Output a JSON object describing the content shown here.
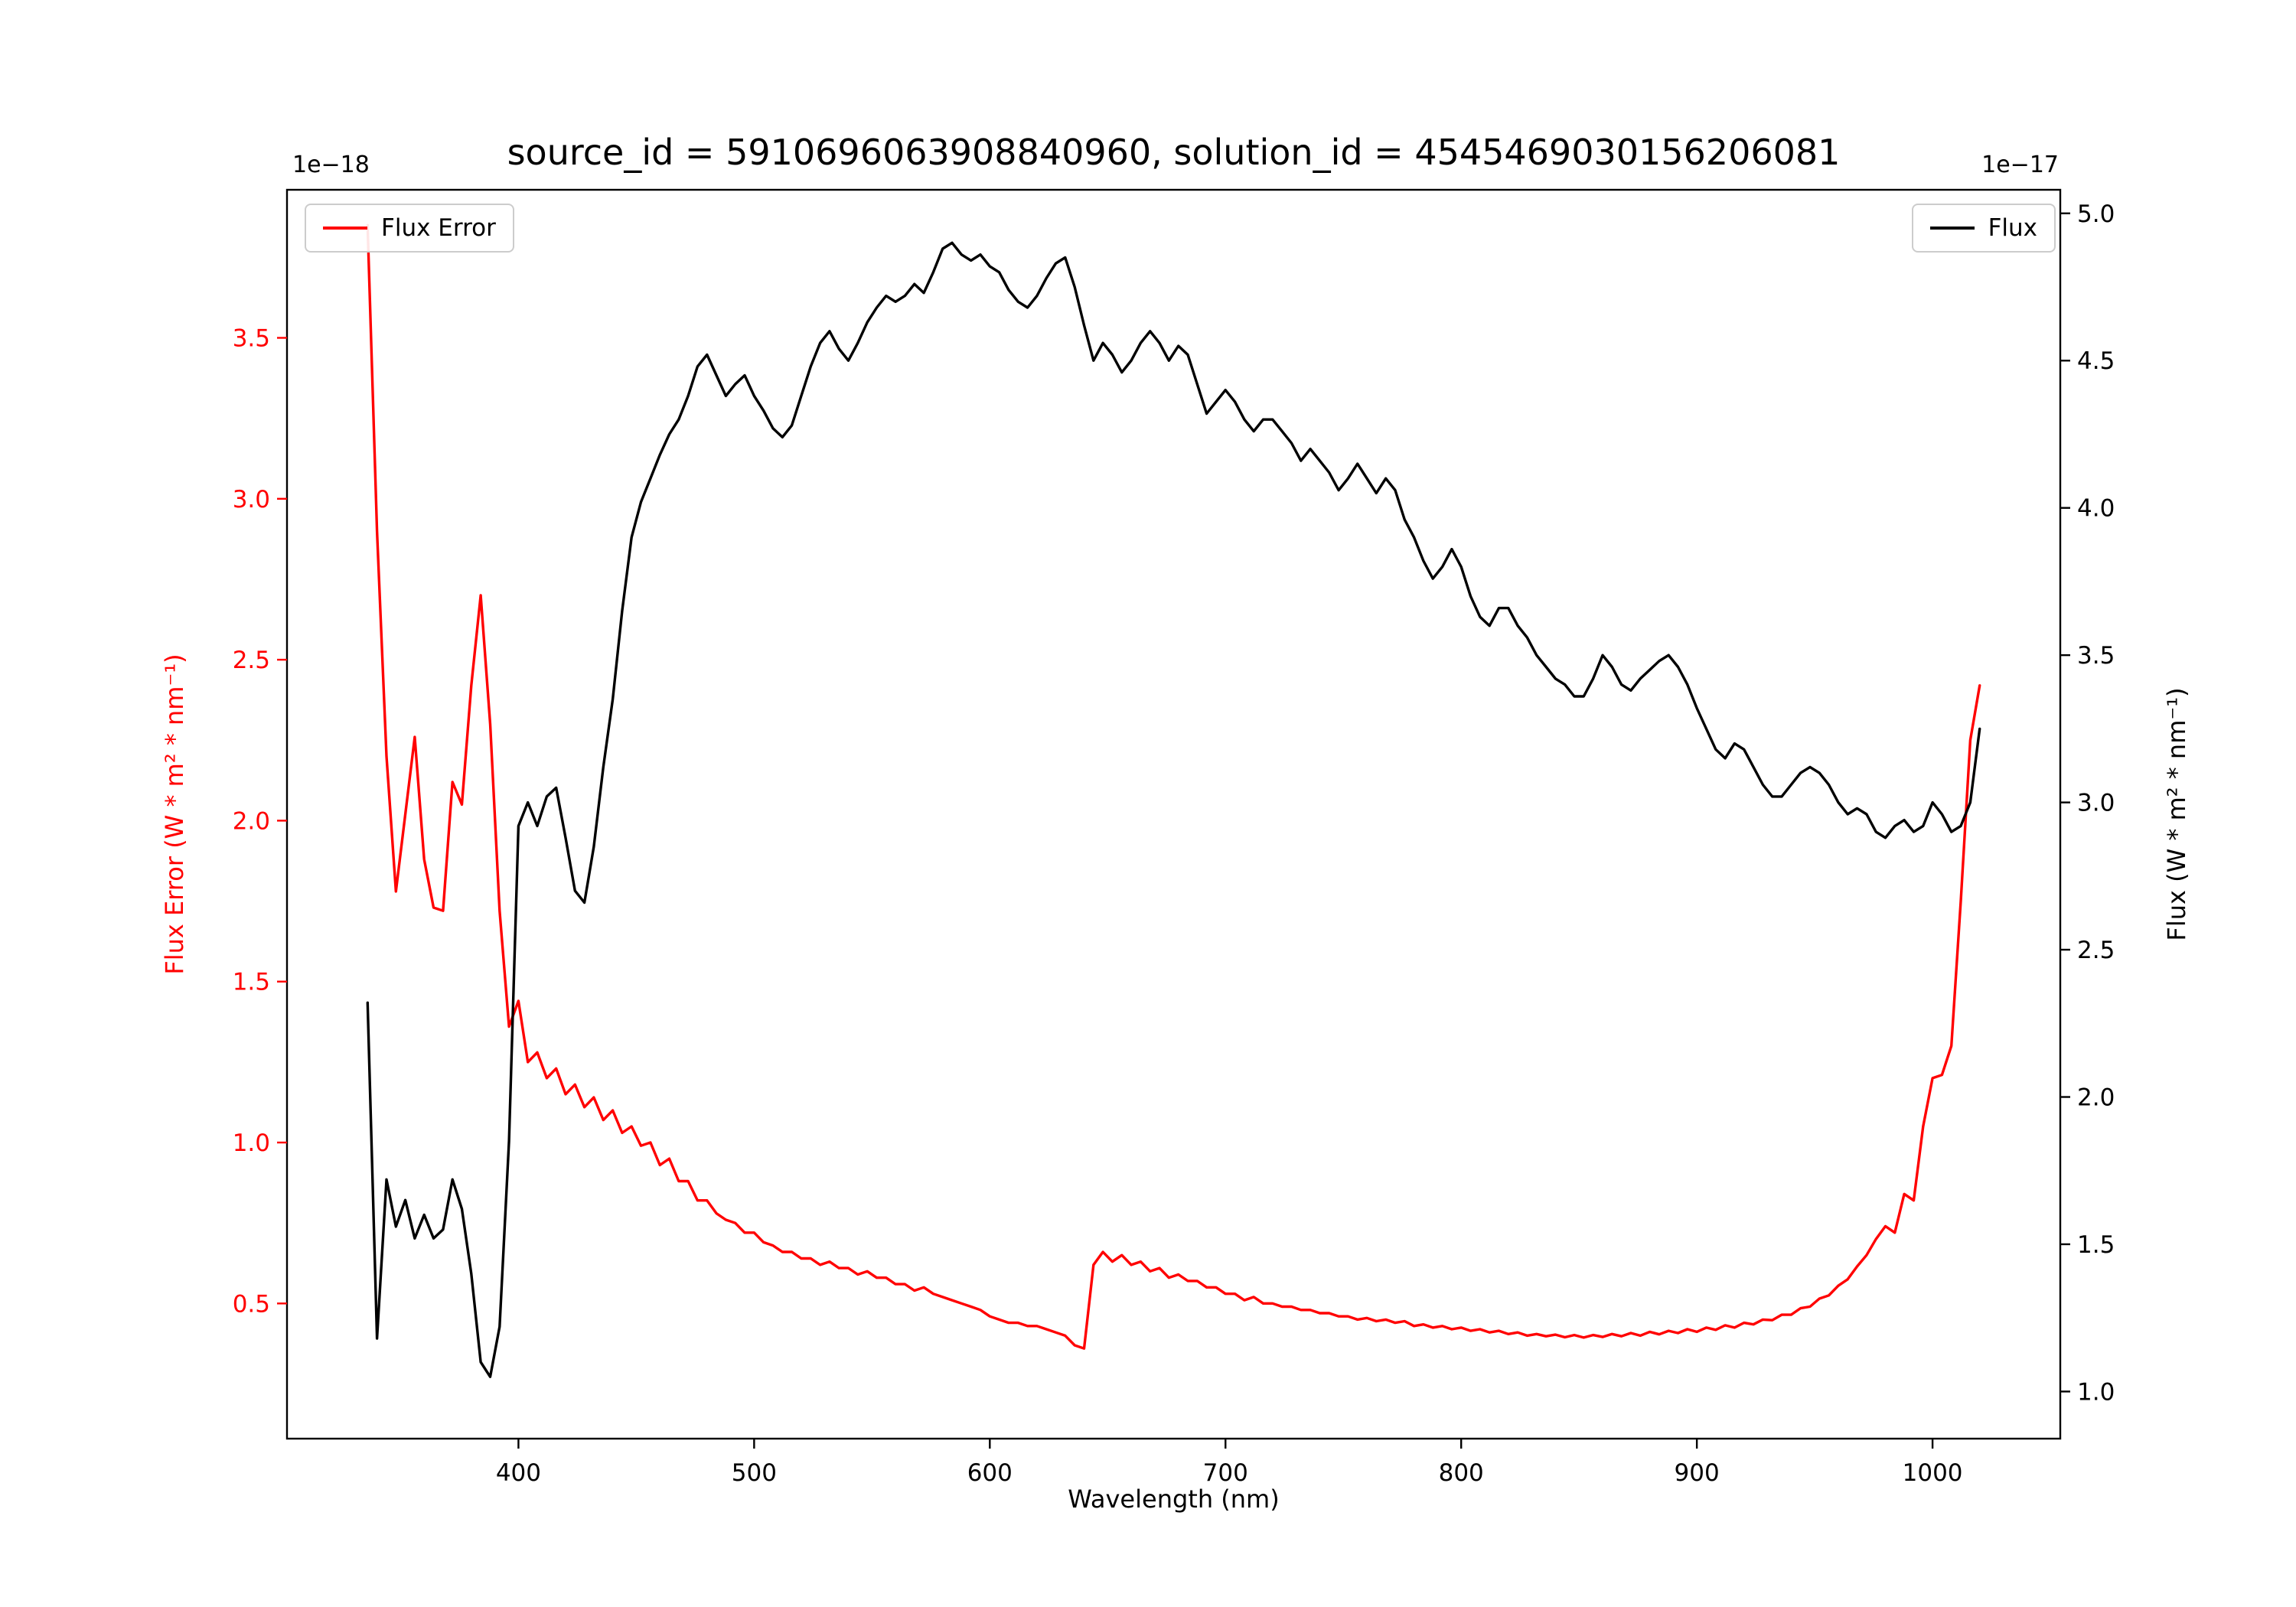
{
  "chart_data": {
    "type": "line",
    "title": "source_id = 5910696063908840960, solution_id = 4545469030156206081",
    "xlabel": "Wavelength (nm)",
    "legend": {
      "left_label": "Flux Error",
      "right_label": "Flux",
      "left_position": "upper left",
      "right_position": "upper right"
    },
    "grid": false,
    "axes": {
      "x": {
        "lim": [
          301.8,
          1054.2
        ],
        "ticks": [
          400,
          500,
          600,
          700,
          800,
          900,
          1000
        ]
      },
      "y_left": {
        "label": "Flux Error (W * m² * nm⁻¹)",
        "scale_label": "1e−18",
        "color": "#ff0000",
        "lim": [
          0.08,
          3.96
        ],
        "ticks": [
          0.5,
          1.0,
          1.5,
          2.0,
          2.5,
          3.0,
          3.5
        ]
      },
      "y_right": {
        "label": "Flux (W * m² * nm⁻¹)",
        "scale_label": "1e−17",
        "color": "#000000",
        "lim": [
          0.84,
          5.08
        ],
        "ticks": [
          1.0,
          1.5,
          2.0,
          2.5,
          3.0,
          3.5,
          4.0,
          4.5,
          5.0
        ]
      }
    },
    "x": [
      336,
      340,
      344,
      348,
      352,
      356,
      360,
      364,
      368,
      372,
      376,
      380,
      384,
      388,
      392,
      396,
      400,
      404,
      408,
      412,
      416,
      420,
      424,
      428,
      432,
      436,
      440,
      444,
      448,
      452,
      456,
      460,
      464,
      468,
      472,
      476,
      480,
      484,
      488,
      492,
      496,
      500,
      504,
      508,
      512,
      516,
      520,
      524,
      528,
      532,
      536,
      540,
      544,
      548,
      552,
      556,
      560,
      564,
      568,
      572,
      576,
      580,
      584,
      588,
      592,
      596,
      600,
      604,
      608,
      612,
      616,
      620,
      624,
      628,
      632,
      636,
      640,
      644,
      648,
      652,
      656,
      660,
      664,
      668,
      672,
      676,
      680,
      684,
      688,
      692,
      696,
      700,
      704,
      708,
      712,
      716,
      720,
      724,
      728,
      732,
      736,
      740,
      744,
      748,
      752,
      756,
      760,
      764,
      768,
      772,
      776,
      780,
      784,
      788,
      792,
      796,
      800,
      804,
      808,
      812,
      816,
      820,
      824,
      828,
      832,
      836,
      840,
      844,
      848,
      852,
      856,
      860,
      864,
      868,
      872,
      876,
      880,
      884,
      888,
      892,
      896,
      900,
      904,
      908,
      912,
      916,
      920,
      924,
      928,
      932,
      936,
      940,
      944,
      948,
      952,
      956,
      960,
      964,
      968,
      972,
      976,
      980,
      984,
      988,
      992,
      996,
      1000,
      1004,
      1008,
      1012,
      1016,
      1020
    ],
    "series": [
      {
        "name": "Flux Error",
        "axis": "left",
        "color": "#ff0000",
        "units_scale": "1e-18",
        "values": [
          3.85,
          2.9,
          2.2,
          1.78,
          2.02,
          2.26,
          1.88,
          1.73,
          1.72,
          2.12,
          2.05,
          2.42,
          2.7,
          2.3,
          1.72,
          1.36,
          1.44,
          1.25,
          1.28,
          1.2,
          1.23,
          1.15,
          1.18,
          1.11,
          1.14,
          1.07,
          1.1,
          1.03,
          1.05,
          0.99,
          1.0,
          0.93,
          0.95,
          0.88,
          0.88,
          0.82,
          0.82,
          0.78,
          0.76,
          0.75,
          0.72,
          0.72,
          0.69,
          0.68,
          0.66,
          0.66,
          0.64,
          0.64,
          0.62,
          0.63,
          0.61,
          0.61,
          0.59,
          0.6,
          0.58,
          0.58,
          0.56,
          0.56,
          0.54,
          0.55,
          0.53,
          0.52,
          0.51,
          0.5,
          0.49,
          0.48,
          0.46,
          0.45,
          0.44,
          0.44,
          0.43,
          0.43,
          0.42,
          0.41,
          0.4,
          0.37,
          0.36,
          0.62,
          0.66,
          0.63,
          0.65,
          0.62,
          0.63,
          0.6,
          0.61,
          0.58,
          0.59,
          0.57,
          0.57,
          0.55,
          0.55,
          0.53,
          0.53,
          0.51,
          0.52,
          0.5,
          0.5,
          0.49,
          0.49,
          0.48,
          0.48,
          0.47,
          0.47,
          0.46,
          0.46,
          0.45,
          0.455,
          0.445,
          0.45,
          0.44,
          0.445,
          0.43,
          0.435,
          0.425,
          0.43,
          0.42,
          0.425,
          0.415,
          0.42,
          0.41,
          0.415,
          0.405,
          0.41,
          0.4,
          0.405,
          0.398,
          0.403,
          0.395,
          0.402,
          0.394,
          0.402,
          0.396,
          0.405,
          0.398,
          0.408,
          0.4,
          0.412,
          0.404,
          0.415,
          0.408,
          0.42,
          0.412,
          0.425,
          0.418,
          0.432,
          0.425,
          0.44,
          0.435,
          0.45,
          0.448,
          0.465,
          0.465,
          0.485,
          0.49,
          0.515,
          0.525,
          0.555,
          0.575,
          0.615,
          0.65,
          0.7,
          0.74,
          0.72,
          0.84,
          0.82,
          1.05,
          1.2,
          1.21,
          1.3,
          1.75,
          2.25,
          2.42
        ]
      },
      {
        "name": "Flux",
        "axis": "right",
        "color": "#000000",
        "units_scale": "1e-17",
        "values": [
          2.32,
          1.18,
          1.72,
          1.56,
          1.65,
          1.52,
          1.6,
          1.52,
          1.55,
          1.72,
          1.62,
          1.4,
          1.1,
          1.05,
          1.22,
          1.85,
          2.92,
          3.0,
          2.92,
          3.02,
          3.05,
          2.88,
          2.7,
          2.66,
          2.85,
          3.12,
          3.35,
          3.65,
          3.9,
          4.02,
          4.1,
          4.18,
          4.25,
          4.3,
          4.38,
          4.48,
          4.52,
          4.45,
          4.38,
          4.42,
          4.45,
          4.38,
          4.33,
          4.27,
          4.24,
          4.28,
          4.38,
          4.48,
          4.56,
          4.6,
          4.54,
          4.5,
          4.56,
          4.63,
          4.68,
          4.72,
          4.7,
          4.72,
          4.76,
          4.73,
          4.8,
          4.88,
          4.9,
          4.86,
          4.84,
          4.86,
          4.82,
          4.8,
          4.74,
          4.7,
          4.68,
          4.72,
          4.78,
          4.83,
          4.85,
          4.75,
          4.62,
          4.5,
          4.56,
          4.52,
          4.46,
          4.5,
          4.56,
          4.6,
          4.56,
          4.5,
          4.55,
          4.52,
          4.42,
          4.32,
          4.36,
          4.4,
          4.36,
          4.3,
          4.26,
          4.3,
          4.3,
          4.26,
          4.22,
          4.16,
          4.2,
          4.16,
          4.12,
          4.06,
          4.1,
          4.15,
          4.1,
          4.05,
          4.1,
          4.06,
          3.96,
          3.9,
          3.82,
          3.76,
          3.8,
          3.86,
          3.8,
          3.7,
          3.63,
          3.6,
          3.66,
          3.66,
          3.6,
          3.56,
          3.5,
          3.46,
          3.42,
          3.4,
          3.36,
          3.36,
          3.42,
          3.5,
          3.46,
          3.4,
          3.38,
          3.42,
          3.45,
          3.48,
          3.5,
          3.46,
          3.4,
          3.32,
          3.25,
          3.18,
          3.15,
          3.2,
          3.18,
          3.12,
          3.06,
          3.02,
          3.02,
          3.06,
          3.1,
          3.12,
          3.1,
          3.06,
          3.0,
          2.96,
          2.98,
          2.96,
          2.9,
          2.88,
          2.92,
          2.94,
          2.9,
          2.92,
          3.0,
          2.96,
          2.9,
          2.92,
          3.0,
          3.25
        ]
      }
    ]
  }
}
